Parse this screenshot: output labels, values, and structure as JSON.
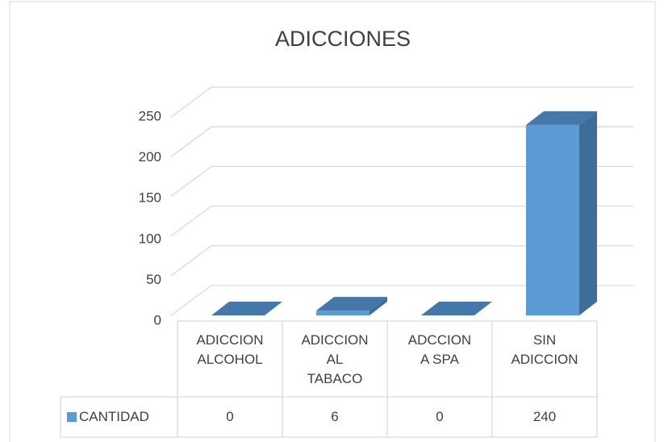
{
  "chart_data": {
    "type": "bar3d",
    "title": "ADICCIONES",
    "categories": [
      "ADICCION ALCOHOL",
      "ADICCION AL TABACO",
      "ADCCION A SPA",
      "SIN ADICCION"
    ],
    "series": [
      {
        "name": "CANTIDAD",
        "color": "#5b9bd5",
        "values": [
          0,
          6,
          0,
          240
        ]
      }
    ],
    "ylim": [
      0,
      250
    ],
    "yticks": [
      0,
      50,
      100,
      150,
      200,
      250
    ],
    "grid": true,
    "data_table": true
  }
}
